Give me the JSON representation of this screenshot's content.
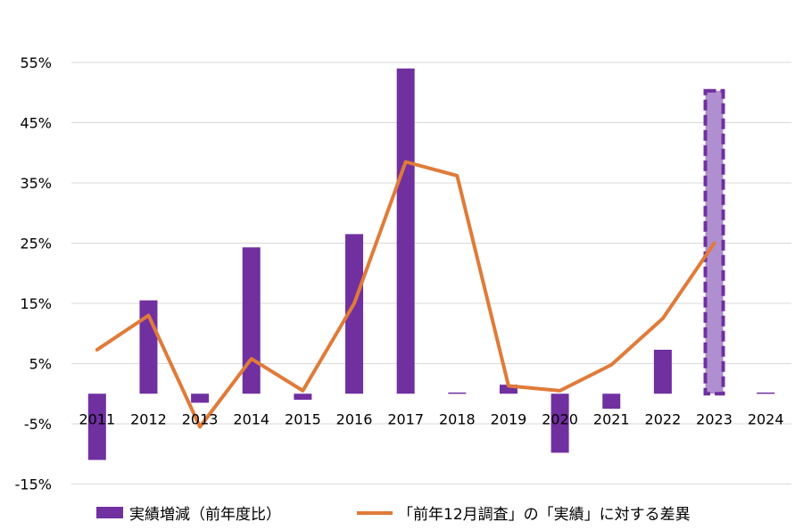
{
  "chart_data": {
    "type": "bar+line",
    "categories": [
      "2011",
      "2012",
      "2013",
      "2014",
      "2015",
      "2016",
      "2017",
      "2018",
      "2019",
      "2020",
      "2021",
      "2022",
      "2023",
      "2024"
    ],
    "y_ticks": [
      "55%",
      "45%",
      "35%",
      "25%",
      "15%",
      "5%",
      "-5%",
      "-15%"
    ],
    "y_tick_values": [
      55,
      45,
      35,
      25,
      15,
      5,
      -5,
      -15
    ],
    "ylim": [
      -15,
      55
    ],
    "grid": true,
    "legend_position": "bottom",
    "series": [
      {
        "name": "実績増減（前年度比）",
        "type": "bar",
        "color": "#7030a0",
        "values": [
          -11,
          15.5,
          -1.5,
          24.3,
          -1,
          26.5,
          54,
          0.2,
          1.5,
          -9.8,
          -2.5,
          7.3,
          50.3,
          0.2
        ],
        "highlight_index": 12,
        "highlight_color": "#b08fd0"
      },
      {
        "name": "「前年12月調査」の「実績」に対する差異",
        "type": "line",
        "color": "#e07b39",
        "values": [
          7.3,
          13,
          -5.5,
          5.8,
          0.5,
          15,
          38.5,
          36.2,
          1.3,
          0.5,
          4.8,
          12.5,
          25,
          null
        ]
      }
    ]
  }
}
